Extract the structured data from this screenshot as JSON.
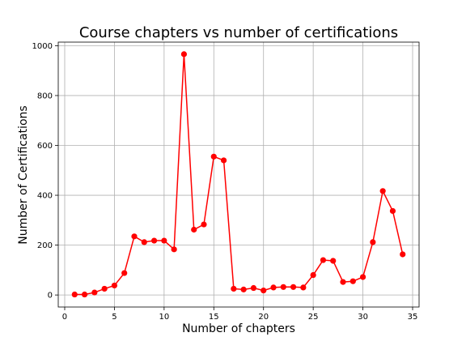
{
  "chart_data": {
    "type": "line",
    "title": "Course chapters vs number of certifications",
    "xlabel": "Number of chapters",
    "ylabel": "Number of Certifications",
    "xlim": [
      -0.65,
      35.65
    ],
    "ylim": [
      -48.3,
      1014.3
    ],
    "x_ticks": [
      0,
      5,
      10,
      15,
      20,
      25,
      30,
      35
    ],
    "y_ticks": [
      0,
      200,
      400,
      600,
      800,
      1000
    ],
    "grid": true,
    "line_color": "#ff0000",
    "marker": "circle",
    "x": [
      1,
      2,
      3,
      4,
      5,
      6,
      7,
      8,
      9,
      10,
      11,
      12,
      13,
      14,
      15,
      16,
      17,
      18,
      19,
      20,
      21,
      22,
      23,
      24,
      25,
      26,
      27,
      28,
      29,
      30,
      31,
      32,
      33,
      34
    ],
    "y": [
      2,
      2,
      10,
      25,
      38,
      88,
      235,
      212,
      218,
      218,
      183,
      966,
      262,
      283,
      555,
      540,
      25,
      22,
      28,
      18,
      30,
      32,
      32,
      30,
      80,
      140,
      137,
      52,
      55,
      72,
      212,
      417,
      337,
      163
    ]
  }
}
